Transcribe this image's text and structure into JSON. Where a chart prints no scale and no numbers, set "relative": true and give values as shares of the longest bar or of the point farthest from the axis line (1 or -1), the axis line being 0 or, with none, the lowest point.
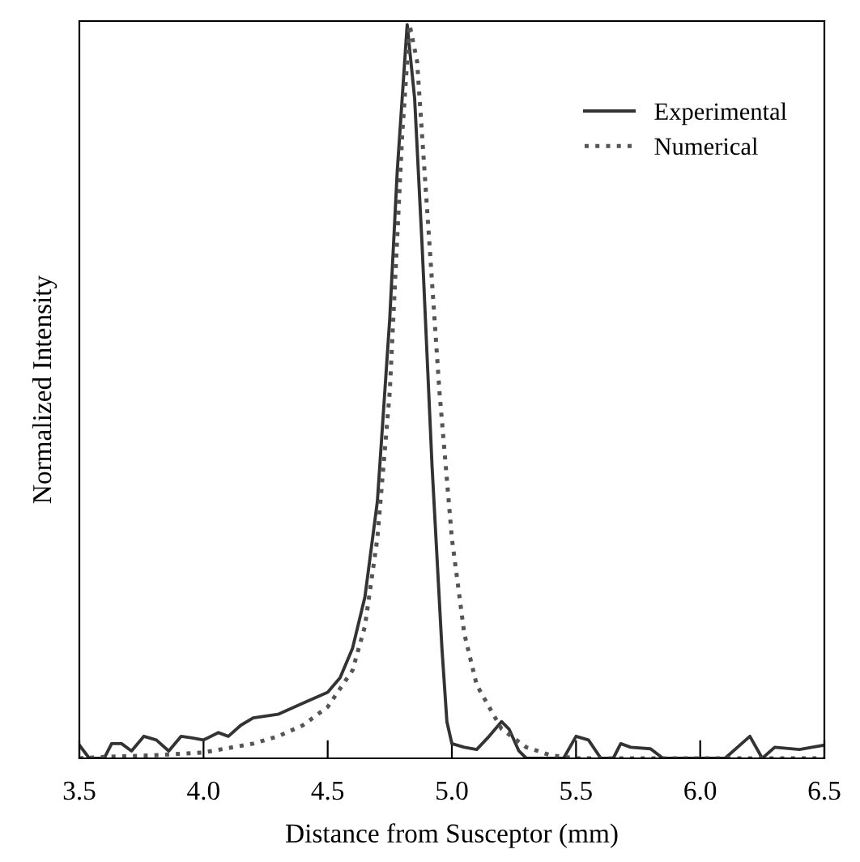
{
  "chart_data": {
    "type": "line",
    "xlabel": "Distance from Susceptor (mm)",
    "ylabel": "Normalized Intensity",
    "relative": true,
    "xlim": [
      3.5,
      6.5
    ],
    "xticks": [
      {
        "value": 3.5,
        "label": "3.5"
      },
      {
        "value": 4.0,
        "label": "4.0"
      },
      {
        "value": 4.5,
        "label": "4.5"
      },
      {
        "value": 5.0,
        "label": "5.0"
      },
      {
        "value": 5.5,
        "label": "5.5"
      },
      {
        "value": 6.0,
        "label": "6.0"
      },
      {
        "value": 6.5,
        "label": "6.5"
      }
    ],
    "legend": "top right",
    "grid": false,
    "series": [
      {
        "name": "Experimental",
        "color": "#333333",
        "line_style": "solid",
        "x": [
          3.5,
          3.54,
          3.6,
          3.63,
          3.67,
          3.71,
          3.76,
          3.81,
          3.86,
          3.91,
          3.95,
          4.0,
          4.06,
          4.1,
          4.15,
          4.2,
          4.3,
          4.4,
          4.5,
          4.55,
          4.6,
          4.65,
          4.7,
          4.75,
          4.78,
          4.82,
          4.85,
          4.88,
          4.92,
          4.96,
          4.98,
          5.0,
          5.05,
          5.1,
          5.15,
          5.2,
          5.23,
          5.27,
          5.3,
          5.45,
          5.5,
          5.55,
          5.6,
          5.65,
          5.68,
          5.72,
          5.8,
          5.85,
          6.1,
          6.2,
          6.25,
          6.3,
          6.4,
          6.45,
          6.5
        ],
        "values": [
          0.018,
          0.0,
          0.0,
          0.02,
          0.02,
          0.01,
          0.03,
          0.025,
          0.01,
          0.03,
          0.028,
          0.025,
          0.035,
          0.03,
          0.045,
          0.055,
          0.06,
          0.075,
          0.09,
          0.11,
          0.15,
          0.22,
          0.35,
          0.6,
          0.8,
          1.0,
          0.9,
          0.7,
          0.4,
          0.15,
          0.05,
          0.02,
          0.015,
          0.012,
          0.03,
          0.05,
          0.04,
          0.01,
          0.0,
          0.0,
          0.03,
          0.025,
          0.0,
          0.0,
          0.02,
          0.015,
          0.013,
          0.0,
          0.0,
          0.03,
          0.0,
          0.015,
          0.012,
          0.015,
          0.018
        ]
      },
      {
        "name": "Numerical",
        "color": "#555555",
        "line_style": "dotted",
        "x": [
          3.5,
          3.6,
          3.8,
          4.0,
          4.2,
          4.3,
          4.4,
          4.5,
          4.6,
          4.65,
          4.7,
          4.75,
          4.8,
          4.83,
          4.86,
          4.9,
          4.95,
          5.0,
          5.05,
          5.1,
          5.2,
          5.3,
          5.4,
          5.5,
          6.5
        ],
        "values": [
          0.0,
          0.002,
          0.004,
          0.008,
          0.02,
          0.03,
          0.045,
          0.07,
          0.12,
          0.18,
          0.3,
          0.5,
          0.85,
          1.0,
          0.95,
          0.75,
          0.5,
          0.3,
          0.17,
          0.1,
          0.04,
          0.015,
          0.004,
          0.0,
          0.0
        ]
      }
    ]
  }
}
